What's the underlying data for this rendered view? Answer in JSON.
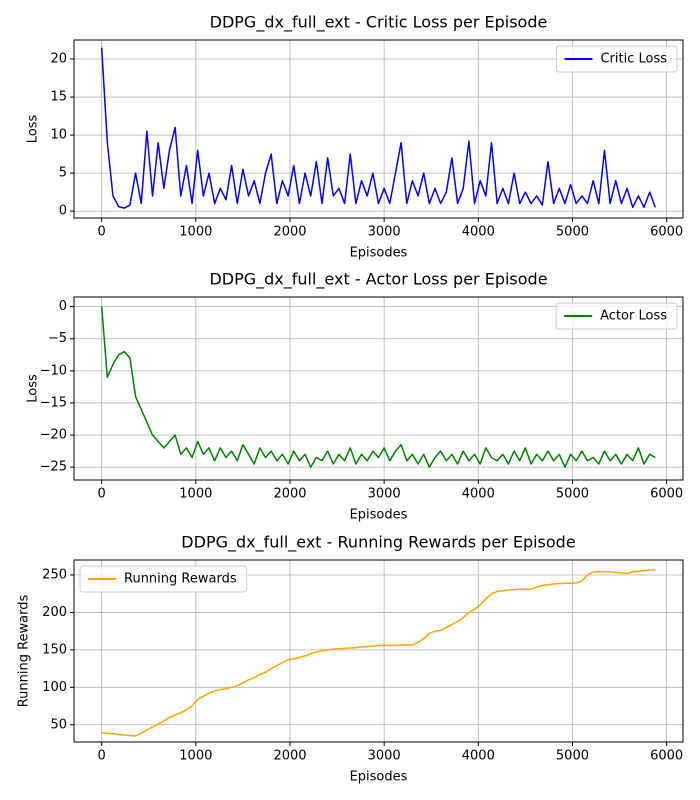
{
  "chart_data": [
    {
      "type": "line",
      "title": "DDPG_dx_full_ext - Critic Loss per Episode",
      "x_label": "Episodes",
      "y_label": "Loss",
      "x": [
        0,
        60,
        120,
        180,
        240,
        300,
        360,
        420,
        480,
        540,
        600,
        660,
        720,
        780,
        840,
        900,
        960,
        1020,
        1080,
        1140,
        1200,
        1260,
        1320,
        1380,
        1440,
        1500,
        1560,
        1620,
        1680,
        1740,
        1800,
        1860,
        1920,
        1980,
        2040,
        2100,
        2160,
        2220,
        2280,
        2340,
        2400,
        2460,
        2520,
        2580,
        2640,
        2700,
        2760,
        2820,
        2880,
        2940,
        3000,
        3060,
        3120,
        3180,
        3240,
        3300,
        3360,
        3420,
        3480,
        3540,
        3600,
        3660,
        3720,
        3780,
        3840,
        3900,
        3960,
        4020,
        4080,
        4140,
        4200,
        4260,
        4320,
        4380,
        4440,
        4500,
        4560,
        4620,
        4680,
        4740,
        4800,
        4860,
        4920,
        4980,
        5040,
        5100,
        5160,
        5220,
        5280,
        5340,
        5400,
        5460,
        5520,
        5580,
        5640,
        5700,
        5760,
        5820,
        5880
      ],
      "series": [
        {
          "name": "Critic Loss",
          "color": "#0000ff",
          "values": [
            21.5,
            9,
            2,
            0.6,
            0.4,
            0.8,
            5,
            1,
            10.5,
            2,
            9,
            3,
            8,
            11,
            2,
            6,
            1,
            8,
            2,
            5,
            1,
            3,
            1.5,
            6,
            1,
            5.5,
            2,
            4,
            1,
            5,
            7.5,
            1,
            4,
            2,
            6,
            1,
            5,
            2,
            6.5,
            1,
            7,
            2,
            3,
            1,
            7.5,
            1,
            4,
            2,
            5,
            1,
            3,
            1,
            5,
            9,
            1,
            4,
            2,
            5,
            1,
            3,
            1,
            2.5,
            7,
            1,
            3,
            9.2,
            1,
            4,
            2,
            9,
            1,
            3,
            1,
            5,
            1,
            2.5,
            1,
            2,
            0.8,
            6.5,
            1,
            3,
            1,
            3.5,
            1,
            2,
            1,
            4,
            1,
            8,
            1,
            4,
            1,
            3,
            0.5,
            2,
            0.5,
            2.5,
            0.5
          ]
        }
      ],
      "xlim": [
        -294,
        6174
      ],
      "xticks": [
        0,
        1000,
        2000,
        3000,
        4000,
        5000,
        6000
      ],
      "ylim": [
        -0.9,
        22.5
      ],
      "yticks": [
        0,
        5,
        10,
        15,
        20
      ],
      "grid": true,
      "legend": "upper right"
    },
    {
      "type": "line",
      "title": "DDPG_dx_full_ext - Actor Loss per Episode",
      "x_label": "Episodes",
      "y_label": "Loss",
      "x": [
        0,
        60,
        120,
        180,
        240,
        300,
        360,
        420,
        480,
        540,
        600,
        660,
        720,
        780,
        840,
        900,
        960,
        1020,
        1080,
        1140,
        1200,
        1260,
        1320,
        1380,
        1440,
        1500,
        1560,
        1620,
        1680,
        1740,
        1800,
        1860,
        1920,
        1980,
        2040,
        2100,
        2160,
        2220,
        2280,
        2340,
        2400,
        2460,
        2520,
        2580,
        2640,
        2700,
        2760,
        2820,
        2880,
        2940,
        3000,
        3060,
        3120,
        3180,
        3240,
        3300,
        3360,
        3420,
        3480,
        3540,
        3600,
        3660,
        3720,
        3780,
        3840,
        3900,
        3960,
        4020,
        4080,
        4140,
        4200,
        4260,
        4320,
        4380,
        4440,
        4500,
        4560,
        4620,
        4680,
        4740,
        4800,
        4860,
        4920,
        4980,
        5040,
        5100,
        5160,
        5220,
        5280,
        5340,
        5400,
        5460,
        5520,
        5580,
        5640,
        5700,
        5760,
        5820,
        5880
      ],
      "series": [
        {
          "name": "Actor Loss",
          "color": "#008000",
          "values": [
            0,
            -11,
            -9,
            -7.5,
            -7,
            -8,
            -14,
            -16,
            -18,
            -20,
            -21,
            -22,
            -21,
            -20,
            -23,
            -22,
            -23.5,
            -21,
            -23,
            -22,
            -24,
            -22,
            -23.5,
            -22.5,
            -24,
            -21.5,
            -23,
            -24.5,
            -22,
            -23.5,
            -22.5,
            -24,
            -23,
            -24.5,
            -22.5,
            -24,
            -23,
            -25,
            -23.5,
            -24,
            -22.5,
            -24.5,
            -23,
            -24,
            -22,
            -24.5,
            -23,
            -24,
            -22.5,
            -23.5,
            -22,
            -24,
            -22.5,
            -21.5,
            -24,
            -23,
            -24.5,
            -23,
            -25,
            -23.5,
            -22.5,
            -24,
            -23,
            -24.5,
            -22.5,
            -24,
            -23,
            -24.5,
            -22,
            -23.5,
            -24,
            -23,
            -24.5,
            -22.5,
            -24,
            -22,
            -24.5,
            -23,
            -24,
            -22.5,
            -24,
            -23,
            -25,
            -23,
            -24,
            -22.5,
            -24,
            -23.5,
            -24.5,
            -22.5,
            -24,
            -23,
            -24.5,
            -23,
            -24,
            -22,
            -24.5,
            -23,
            -23.5
          ]
        }
      ],
      "xlim": [
        -294,
        6174
      ],
      "xticks": [
        0,
        1000,
        2000,
        3000,
        4000,
        5000,
        6000
      ],
      "ylim": [
        -27,
        1.5
      ],
      "yticks": [
        0,
        {
          "value": -5,
          "label": "−5"
        },
        {
          "value": -10,
          "label": "−10"
        },
        {
          "value": -15,
          "label": "−15"
        },
        {
          "value": -20,
          "label": "−20"
        },
        {
          "value": -25,
          "label": "−25"
        }
      ],
      "grid": true,
      "legend": "upper right"
    },
    {
      "type": "line",
      "title": "DDPG_dx_full_ext - Running Rewards per Episode",
      "x_label": "Episodes",
      "y_label": "Running Rewards",
      "x": [
        0,
        60,
        120,
        180,
        240,
        300,
        360,
        420,
        480,
        540,
        600,
        660,
        720,
        780,
        840,
        900,
        960,
        1020,
        1080,
        1140,
        1200,
        1260,
        1320,
        1380,
        1440,
        1500,
        1560,
        1620,
        1680,
        1740,
        1800,
        1860,
        1920,
        1980,
        2040,
        2100,
        2160,
        2220,
        2280,
        2340,
        2400,
        2460,
        2520,
        2580,
        2640,
        2700,
        2760,
        2820,
        2880,
        2940,
        3000,
        3060,
        3120,
        3180,
        3240,
        3300,
        3360,
        3420,
        3480,
        3540,
        3600,
        3660,
        3720,
        3780,
        3840,
        3900,
        3960,
        4020,
        4080,
        4140,
        4200,
        4260,
        4320,
        4380,
        4440,
        4500,
        4560,
        4620,
        4680,
        4740,
        4800,
        4860,
        4920,
        4980,
        5040,
        5100,
        5160,
        5220,
        5280,
        5340,
        5400,
        5460,
        5520,
        5580,
        5640,
        5700,
        5760,
        5820,
        5880
      ],
      "series": [
        {
          "name": "Running Rewards",
          "color": "#ffa500",
          "values": [
            39,
            38.5,
            38,
            37,
            36.5,
            35.5,
            35,
            39,
            43,
            47,
            51,
            55,
            60,
            63,
            66,
            70,
            75,
            84,
            88,
            92,
            95,
            97,
            98,
            100,
            102,
            106,
            110,
            113,
            117,
            120,
            125,
            129,
            133,
            137,
            138,
            140,
            142,
            145,
            147,
            149,
            150,
            151,
            151.5,
            152,
            152.5,
            153,
            154,
            154.5,
            155,
            156,
            156,
            156,
            156,
            156.5,
            156.5,
            157,
            160,
            165,
            172,
            175,
            176,
            180,
            184,
            188,
            193,
            200,
            204,
            210,
            218,
            225,
            228,
            229,
            230,
            230.5,
            231,
            231,
            231,
            234,
            236,
            237,
            238,
            238.5,
            239,
            239,
            239.5,
            242,
            250,
            254,
            254.5,
            254.5,
            254,
            253.5,
            253,
            252,
            254,
            255,
            256,
            256.5,
            257
          ]
        }
      ],
      "xlim": [
        -294,
        6174
      ],
      "xticks": [
        0,
        1000,
        2000,
        3000,
        4000,
        5000,
        6000
      ],
      "ylim": [
        27,
        270
      ],
      "yticks": [
        50,
        100,
        150,
        200,
        250
      ],
      "grid": true,
      "legend": "upper left"
    }
  ]
}
